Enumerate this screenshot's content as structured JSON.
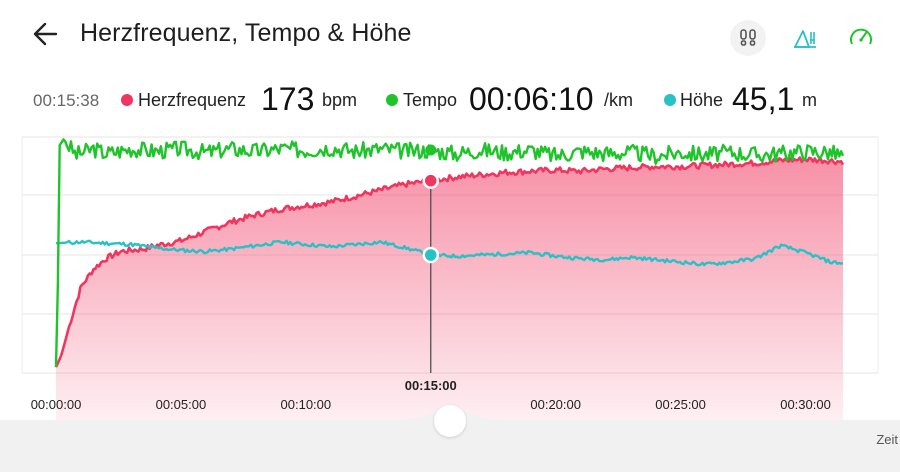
{
  "header": {
    "title": "Herzfrequenz, Tempo & Höhe"
  },
  "icons": {
    "back": "back-arrow-icon",
    "steps": "footprints-icon",
    "terrain": "terrain-icon",
    "speed": "speedometer-icon"
  },
  "colors": {
    "heart": "#f0365f",
    "tempo": "#1fc42a",
    "altitude": "#27c2c8"
  },
  "readout": {
    "time": "00:15:38",
    "hr": {
      "name": "Herzfrequenz",
      "value": "173",
      "unit": "bpm"
    },
    "tempo": {
      "name": "Tempo",
      "value": "00:06:10",
      "unit": "/km"
    },
    "altitude": {
      "name": "Höhe",
      "value": "45,1",
      "unit": "m"
    }
  },
  "cursor_label": "00:15:00",
  "axis_label": "Zeit",
  "chart_data": {
    "type": "line",
    "x_ticks": [
      "00:00:00",
      "00:05:00",
      "00:10:00",
      "00:15:00",
      "00:20:00",
      "00:25:00",
      "00:30:00"
    ],
    "x_range_minutes": [
      0,
      31.5
    ],
    "cursor_minute": 15,
    "series": [
      {
        "name": "Herzfrequenz",
        "points": [
          [
            0,
            5
          ],
          [
            0.2,
            14
          ],
          [
            0.6,
            45
          ],
          [
            1,
            73
          ],
          [
            1.5,
            88
          ],
          [
            2,
            97
          ],
          [
            2.6,
            103
          ],
          [
            3,
            104
          ],
          [
            3.5,
            105
          ],
          [
            4,
            108
          ],
          [
            5,
            112
          ],
          [
            6,
            120
          ],
          [
            7,
            128
          ],
          [
            8,
            134
          ],
          [
            9,
            139
          ],
          [
            10,
            142
          ],
          [
            11,
            145
          ],
          [
            12,
            150
          ],
          [
            13,
            155
          ],
          [
            14,
            160
          ],
          [
            15,
            163
          ],
          [
            16,
            166
          ],
          [
            17,
            168
          ],
          [
            18,
            170
          ],
          [
            19,
            171
          ],
          [
            20,
            172
          ],
          [
            21,
            171
          ],
          [
            22,
            173
          ],
          [
            23,
            174
          ],
          [
            24,
            175
          ],
          [
            25,
            175
          ],
          [
            26,
            176
          ],
          [
            27,
            177
          ],
          [
            28,
            178
          ],
          [
            29,
            180
          ],
          [
            30,
            181
          ],
          [
            31,
            180
          ],
          [
            31.5,
            179
          ]
        ]
      },
      {
        "name": "Tempo",
        "points": [
          [
            0,
            5
          ],
          [
            0.05,
            38
          ],
          [
            0.15,
            193
          ],
          [
            0.3,
            198
          ],
          [
            0.8,
            185
          ],
          [
            1.5,
            190
          ],
          [
            2,
            186
          ],
          [
            3,
            190
          ],
          [
            4,
            188
          ],
          [
            5,
            190
          ],
          [
            6,
            187
          ],
          [
            7,
            190
          ],
          [
            8,
            188
          ],
          [
            9,
            190
          ],
          [
            10,
            189
          ],
          [
            11,
            191
          ],
          [
            12,
            188
          ],
          [
            13,
            190
          ],
          [
            14,
            188
          ],
          [
            15,
            189
          ],
          [
            16,
            186
          ],
          [
            17,
            189
          ],
          [
            18,
            187
          ],
          [
            19,
            189
          ],
          [
            20,
            184
          ],
          [
            21,
            188
          ],
          [
            22,
            186
          ],
          [
            23,
            187
          ],
          [
            24,
            184
          ],
          [
            25,
            187
          ],
          [
            26,
            185
          ],
          [
            27,
            187
          ],
          [
            28,
            185
          ],
          [
            29,
            186
          ],
          [
            30,
            188
          ],
          [
            31,
            187
          ],
          [
            31.5,
            184
          ]
        ]
      },
      {
        "name": "Höhe",
        "points": [
          [
            0,
            110
          ],
          [
            1,
            111
          ],
          [
            2,
            110
          ],
          [
            3,
            109
          ],
          [
            4,
            106
          ],
          [
            5,
            104
          ],
          [
            6,
            103
          ],
          [
            7,
            105
          ],
          [
            8,
            108
          ],
          [
            9,
            111
          ],
          [
            10,
            109
          ],
          [
            11,
            107
          ],
          [
            12,
            109
          ],
          [
            13,
            111
          ],
          [
            14,
            106
          ],
          [
            15,
            100
          ],
          [
            16,
            99
          ],
          [
            17,
            100
          ],
          [
            18,
            101
          ],
          [
            19,
            102
          ],
          [
            20,
            99
          ],
          [
            21,
            97
          ],
          [
            22,
            96
          ],
          [
            23,
            98
          ],
          [
            24,
            96
          ],
          [
            25,
            94
          ],
          [
            26,
            92
          ],
          [
            27,
            94
          ],
          [
            28,
            97
          ],
          [
            29,
            108
          ],
          [
            30,
            102
          ],
          [
            31,
            94
          ],
          [
            31.5,
            93
          ]
        ]
      }
    ]
  }
}
